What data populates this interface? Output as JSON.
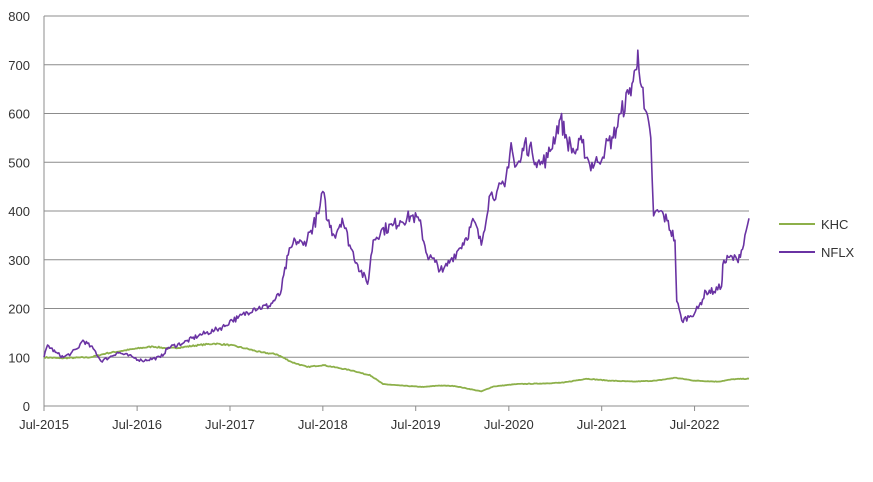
{
  "chart_data": {
    "type": "line",
    "title": "",
    "xlabel": "",
    "ylabel": "",
    "ylim": [
      0,
      800
    ],
    "yticks": [
      0,
      100,
      200,
      300,
      400,
      500,
      600,
      700,
      800
    ],
    "xticks": [
      "Jul-2015",
      "Jul-2016",
      "Jul-2017",
      "Jul-2018",
      "Jul-2019",
      "Jul-2020",
      "Jul-2021",
      "Jul-2022"
    ],
    "xlim": [
      "2015-07-01",
      "2023-01-31"
    ],
    "grid": "horizontal",
    "legend_position": "right",
    "series": [
      {
        "name": "KHC",
        "color": "#8db04a",
        "points": [
          [
            "2015-07-01",
            100
          ],
          [
            "2015-09-01",
            98
          ],
          [
            "2015-11-01",
            99
          ],
          [
            "2016-01-01",
            100
          ],
          [
            "2016-03-01",
            108
          ],
          [
            "2016-05-01",
            113
          ],
          [
            "2016-07-01",
            118
          ],
          [
            "2016-09-01",
            122
          ],
          [
            "2016-11-01",
            118
          ],
          [
            "2017-01-01",
            121
          ],
          [
            "2017-03-01",
            125
          ],
          [
            "2017-05-01",
            128
          ],
          [
            "2017-07-01",
            125
          ],
          [
            "2017-09-01",
            118
          ],
          [
            "2017-11-01",
            110
          ],
          [
            "2018-01-01",
            106
          ],
          [
            "2018-03-01",
            90
          ],
          [
            "2018-05-01",
            80
          ],
          [
            "2018-07-01",
            84
          ],
          [
            "2018-09-01",
            78
          ],
          [
            "2018-11-01",
            72
          ],
          [
            "2018-12-15",
            65
          ],
          [
            "2019-01-01",
            64
          ],
          [
            "2019-02-22",
            45
          ],
          [
            "2019-05-01",
            42
          ],
          [
            "2019-08-01",
            39
          ],
          [
            "2019-10-01",
            42
          ],
          [
            "2019-12-01",
            41
          ],
          [
            "2020-03-15",
            30
          ],
          [
            "2020-05-01",
            40
          ],
          [
            "2020-08-01",
            45
          ],
          [
            "2020-11-01",
            46
          ],
          [
            "2021-02-01",
            48
          ],
          [
            "2021-05-01",
            56
          ],
          [
            "2021-08-01",
            52
          ],
          [
            "2021-11-01",
            50
          ],
          [
            "2022-02-01",
            52
          ],
          [
            "2022-04-15",
            58
          ],
          [
            "2022-07-01",
            52
          ],
          [
            "2022-10-01",
            50
          ],
          [
            "2022-12-01",
            55
          ],
          [
            "2023-01-31",
            56
          ]
        ]
      },
      {
        "name": "NFLX",
        "color": "#6a33a3",
        "points": [
          [
            "2015-07-01",
            100
          ],
          [
            "2015-07-15",
            125
          ],
          [
            "2015-08-15",
            110
          ],
          [
            "2015-09-15",
            100
          ],
          [
            "2015-10-15",
            108
          ],
          [
            "2015-11-10",
            118
          ],
          [
            "2015-12-01",
            135
          ],
          [
            "2016-01-15",
            115
          ],
          [
            "2016-02-10",
            92
          ],
          [
            "2016-03-15",
            100
          ],
          [
            "2016-04-15",
            110
          ],
          [
            "2016-06-15",
            100
          ],
          [
            "2016-07-20",
            93
          ],
          [
            "2016-10-01",
            100
          ],
          [
            "2016-11-01",
            120
          ],
          [
            "2017-01-01",
            130
          ],
          [
            "2017-03-01",
            145
          ],
          [
            "2017-05-01",
            155
          ],
          [
            "2017-06-15",
            165
          ],
          [
            "2017-07-01",
            175
          ],
          [
            "2017-08-01",
            180
          ],
          [
            "2017-10-01",
            200
          ],
          [
            "2017-12-01",
            205
          ],
          [
            "2018-01-15",
            230
          ],
          [
            "2018-02-15",
            310
          ],
          [
            "2018-03-15",
            340
          ],
          [
            "2018-04-15",
            330
          ],
          [
            "2018-05-15",
            360
          ],
          [
            "2018-06-15",
            395
          ],
          [
            "2018-07-01",
            440
          ],
          [
            "2018-07-20",
            380
          ],
          [
            "2018-08-15",
            350
          ],
          [
            "2018-09-15",
            385
          ],
          [
            "2018-10-15",
            330
          ],
          [
            "2018-11-15",
            290
          ],
          [
            "2018-12-24",
            250
          ],
          [
            "2019-01-15",
            340
          ],
          [
            "2019-02-15",
            360
          ],
          [
            "2019-04-01",
            370
          ],
          [
            "2019-05-01",
            380
          ],
          [
            "2019-06-15",
            390
          ],
          [
            "2019-07-15",
            380
          ],
          [
            "2019-08-15",
            310
          ],
          [
            "2019-09-15",
            295
          ],
          [
            "2019-10-15",
            275
          ],
          [
            "2019-11-15",
            300
          ],
          [
            "2019-12-15",
            320
          ],
          [
            "2020-01-15",
            345
          ],
          [
            "2020-02-15",
            380
          ],
          [
            "2020-03-15",
            330
          ],
          [
            "2020-04-15",
            430
          ],
          [
            "2020-05-15",
            440
          ],
          [
            "2020-06-15",
            450
          ],
          [
            "2020-07-10",
            540
          ],
          [
            "2020-07-25",
            490
          ],
          [
            "2020-08-15",
            500
          ],
          [
            "2020-09-01",
            540
          ],
          [
            "2020-10-01",
            520
          ],
          [
            "2020-11-01",
            495
          ],
          [
            "2020-12-01",
            510
          ],
          [
            "2021-01-20",
            590
          ],
          [
            "2021-02-15",
            545
          ],
          [
            "2021-03-15",
            520
          ],
          [
            "2021-04-15",
            540
          ],
          [
            "2021-05-15",
            495
          ],
          [
            "2021-06-15",
            500
          ],
          [
            "2021-07-15",
            530
          ],
          [
            "2021-08-15",
            550
          ],
          [
            "2021-09-15",
            600
          ],
          [
            "2021-10-15",
            640
          ],
          [
            "2021-11-15",
            690
          ],
          [
            "2021-11-20",
            730
          ],
          [
            "2021-12-15",
            610
          ],
          [
            "2022-01-10",
            550
          ],
          [
            "2022-01-21",
            390
          ],
          [
            "2022-02-15",
            400
          ],
          [
            "2022-03-15",
            380
          ],
          [
            "2022-04-15",
            340
          ],
          [
            "2022-04-22",
            215
          ],
          [
            "2022-05-12",
            175
          ],
          [
            "2022-06-15",
            185
          ],
          [
            "2022-07-15",
            200
          ],
          [
            "2022-08-15",
            235
          ],
          [
            "2022-09-15",
            235
          ],
          [
            "2022-10-15",
            245
          ],
          [
            "2022-10-20",
            290
          ],
          [
            "2022-11-15",
            305
          ],
          [
            "2022-12-15",
            300
          ],
          [
            "2023-01-10",
            330
          ],
          [
            "2023-01-20",
            360
          ],
          [
            "2023-01-31",
            385
          ]
        ]
      }
    ]
  }
}
